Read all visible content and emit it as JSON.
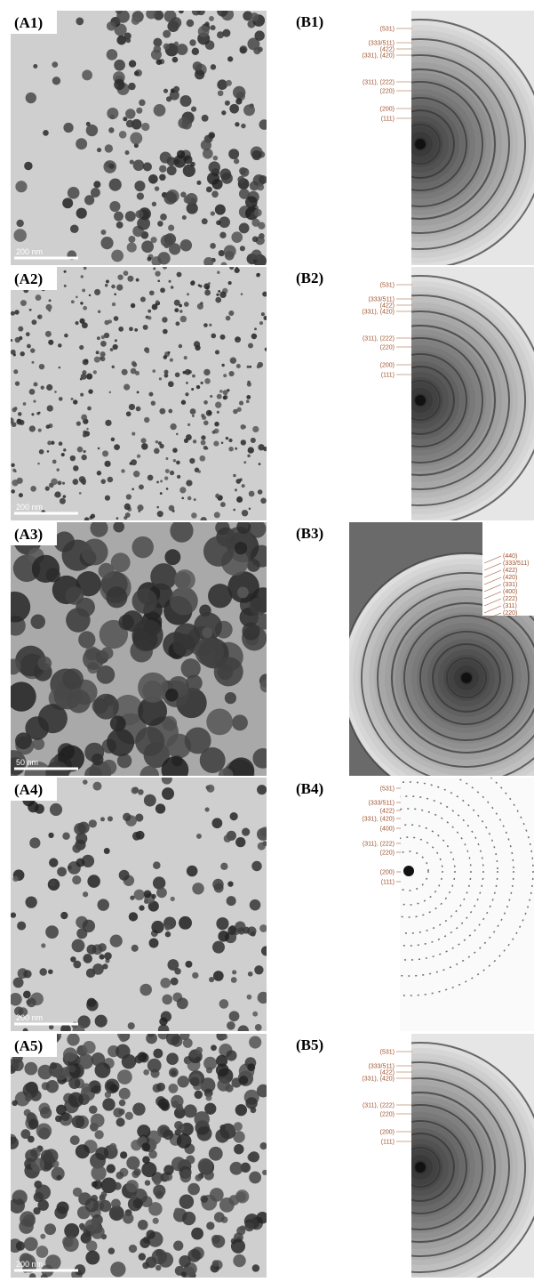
{
  "panels": [
    {
      "tem": {
        "label": "(A1)",
        "scale_bar": "200 nm"
      },
      "saed": {
        "label": "(B1)",
        "rings": [
          "(531)",
          "(333/511)",
          "(422)",
          "(331), (420)",
          "(311), (222)",
          "(220)",
          "(200)",
          "(111)"
        ]
      }
    },
    {
      "tem": {
        "label": "(A2)",
        "scale_bar": "200 nm"
      },
      "saed": {
        "label": "(B2)",
        "rings": [
          "(531)",
          "(333/511)",
          "(422)",
          "(331), (420)",
          "(311), (222)",
          "(220)",
          "(200)",
          "(111)"
        ]
      }
    },
    {
      "tem": {
        "label": "(A3)",
        "scale_bar": "50 nm"
      },
      "saed": {
        "label": "(B3)",
        "rings": [
          "(440)",
          "(333/511)",
          "(422)",
          "(420)",
          "(331)",
          "(400)",
          "(222)",
          "(311)",
          "(220)"
        ]
      }
    },
    {
      "tem": {
        "label": "(A4)",
        "scale_bar": "200 nm"
      },
      "saed": {
        "label": "(B4)",
        "rings": [
          "(531)",
          "(333/511)",
          "(422)",
          "(331), (420)",
          "(400)",
          "(311), (222)",
          "(220)",
          "(200)",
          "(111)"
        ]
      }
    },
    {
      "tem": {
        "label": "(A5)",
        "scale_bar": "200 nm"
      },
      "saed": {
        "label": "(B5)",
        "rings": [
          "(531)",
          "(333/511)",
          "(422)",
          "(331), (420)",
          "(311), (222)",
          "(220)",
          "(200)",
          "(111)"
        ]
      }
    }
  ]
}
